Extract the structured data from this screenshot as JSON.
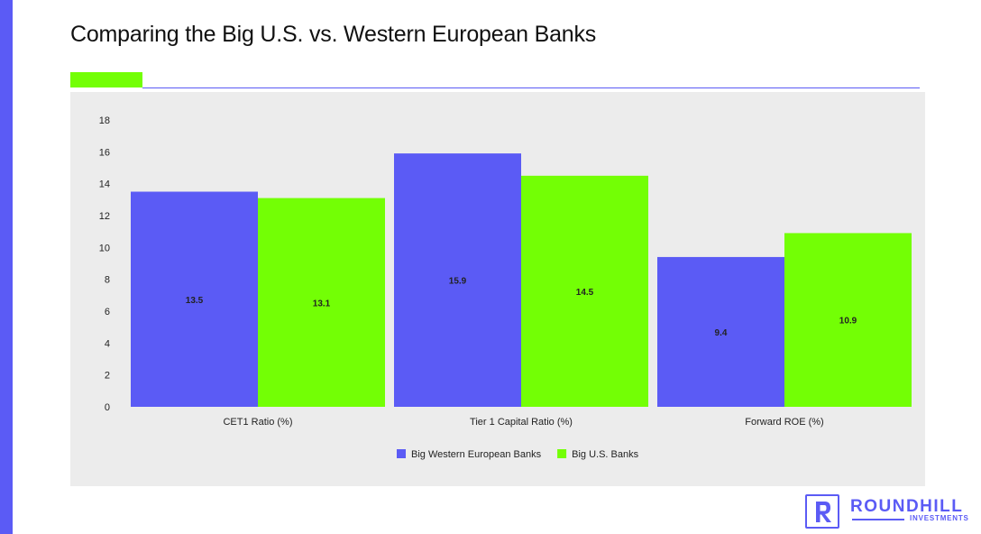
{
  "page": {
    "title": "Comparing the Big U.S. vs. Western European Banks",
    "accent_color": "#73ff05",
    "brand_color": "#5b5bf5"
  },
  "logo": {
    "wordmark": "ROUNDHILL",
    "subtitle": "INVESTMENTS",
    "icon": "letter-r-icon"
  },
  "chart_data": {
    "type": "bar",
    "categories": [
      "CET1 Ratio (%)",
      "Tier 1 Capital Ratio (%)",
      "Forward ROE (%)"
    ],
    "series": [
      {
        "name": "Big Western European Banks",
        "values": [
          13.5,
          15.9,
          9.4
        ],
        "color": "#5b5bf5"
      },
      {
        "name": "Big U.S. Banks",
        "values": [
          13.1,
          14.5,
          10.9
        ],
        "color": "#73ff05"
      }
    ],
    "ylim": [
      0,
      18
    ],
    "yticks": [
      0,
      2,
      4,
      6,
      8,
      10,
      12,
      14,
      16,
      18
    ],
    "data_labels": true,
    "legend": "bottom-center",
    "grid": false
  }
}
